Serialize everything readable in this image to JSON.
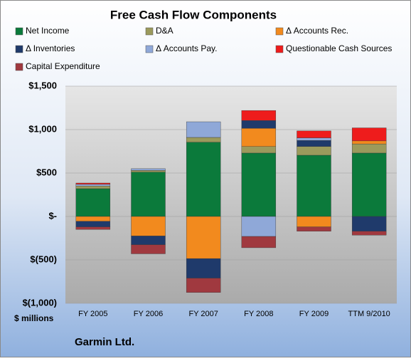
{
  "chart_data": {
    "type": "stacked-bar",
    "title": "Free Cash Flow Components",
    "y_unit_label": "$ millions",
    "footer": "Garmin Ltd.",
    "categories": [
      "FY 2005",
      "FY 2006",
      "FY 2007",
      "FY 2008",
      "FY 2009",
      "TTM 9/2010"
    ],
    "series": [
      {
        "name": "Net Income",
        "color": "#0b7a3b",
        "values": [
          320,
          510,
          855,
          730,
          705,
          730
        ]
      },
      {
        "name": "D&A",
        "color": "#9b9a5c",
        "values": [
          30,
          20,
          55,
          75,
          100,
          105
        ]
      },
      {
        "name": "Δ Accounts Rec.",
        "color": "#f28a1e",
        "values": [
          -55,
          -225,
          -485,
          210,
          -120,
          35
        ]
      },
      {
        "name": "Δ Inventories",
        "color": "#1f3a6b",
        "values": [
          -65,
          -100,
          -225,
          90,
          70,
          -170
        ]
      },
      {
        "name": "Δ Accounts Pay.",
        "color": "#8fa8d8",
        "values": [
          20,
          20,
          180,
          -230,
          30,
          0
        ]
      },
      {
        "name": "Questionable Cash Sources",
        "color": "#ee1c1c",
        "values": [
          15,
          0,
          0,
          115,
          80,
          150
        ]
      },
      {
        "name": "Capital Expenditure",
        "color": "#a0393f",
        "values": [
          -30,
          -105,
          -165,
          -130,
          -50,
          -45
        ]
      }
    ],
    "ylim": [
      -1000,
      1500
    ],
    "yticks": [
      {
        "value": 1500,
        "label": "$1,500"
      },
      {
        "value": 1000,
        "label": "$1,000"
      },
      {
        "value": 500,
        "label": "$500"
      },
      {
        "value": 0,
        "label": "$-"
      },
      {
        "value": -500,
        "label": "$(500)"
      },
      {
        "value": -1000,
        "label": "$(1,000)"
      }
    ],
    "grid": true
  }
}
